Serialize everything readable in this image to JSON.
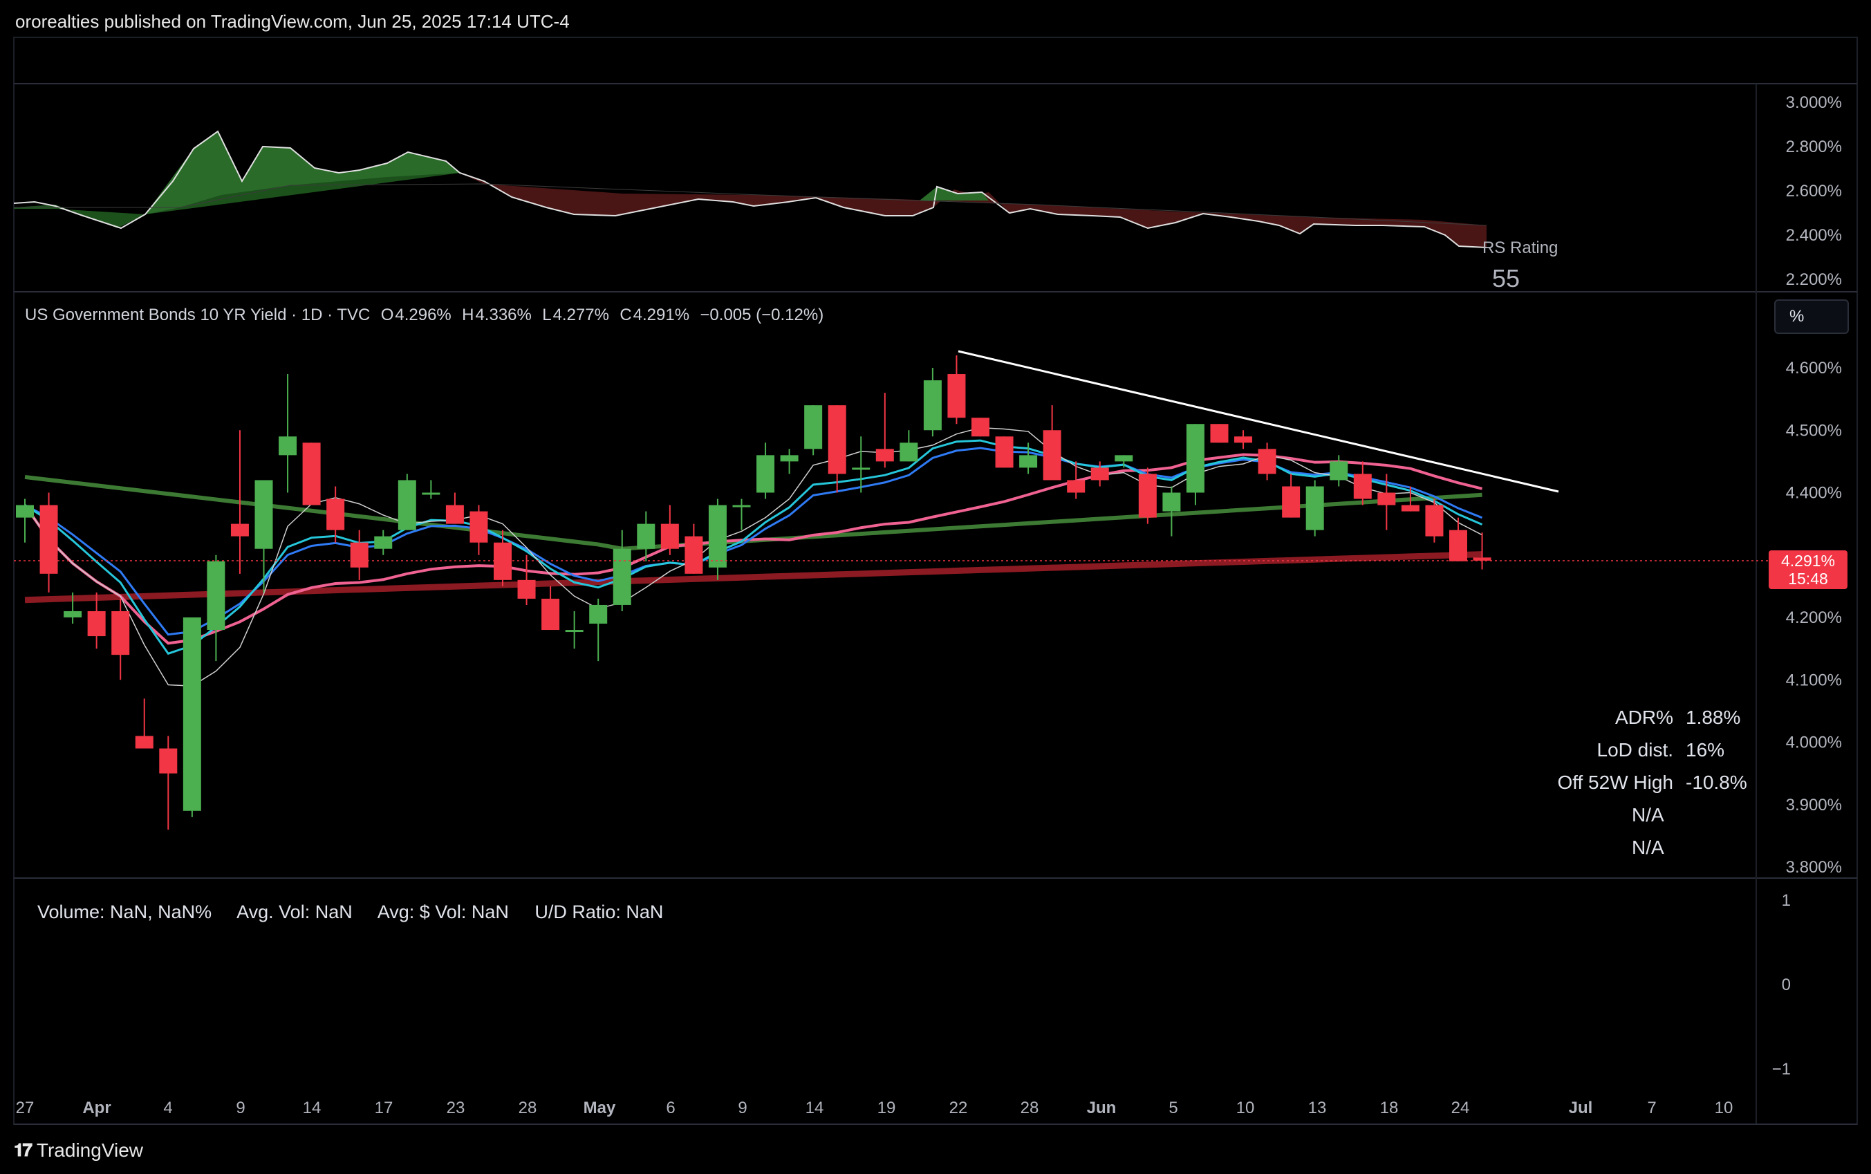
{
  "header": {
    "published": "ororealties published on TradingView.com, Jun 25, 2025 17:14 UTC-4"
  },
  "rs_panel": {
    "label": "RS Rating",
    "value": "55",
    "axis_labels": [
      "3.000%",
      "2.800%",
      "2.600%",
      "2.400%",
      "2.200%"
    ]
  },
  "legend": {
    "symbol": "US Government Bonds 10 YR Yield · 1D · TVC",
    "o_label": "O",
    "o_value": "4.296%",
    "h_label": "H",
    "h_value": "4.336%",
    "l_label": "L",
    "l_value": "4.277%",
    "c_label": "C",
    "c_value": "4.291%",
    "change": "−0.005 (−0.12%)"
  },
  "scale_button": "%",
  "price_tag": {
    "price": "4.291%",
    "countdown": "15:48"
  },
  "price_axis_labels": [
    "4.600%",
    "4.500%",
    "4.400%",
    "4.200%",
    "4.100%",
    "4.000%",
    "3.900%",
    "3.800%"
  ],
  "stats": [
    {
      "label": "ADR%",
      "value": "1.88%"
    },
    {
      "label": "LoD dist.",
      "value": "16%"
    },
    {
      "label": "Off 52W High",
      "value": "-10.8%"
    },
    {
      "label": "",
      "value": "N/A"
    },
    {
      "label": "",
      "value": "N/A"
    }
  ],
  "volume_legend": {
    "volume": "Volume: NaN, NaN%",
    "avg_vol": "Avg. Vol: NaN",
    "avg_dollar_vol": "Avg: $ Vol: NaN",
    "ud_ratio": "U/D Ratio: NaN"
  },
  "volume_axis_labels": [
    "1",
    "0",
    "−1"
  ],
  "time_axis_labels": [
    "27",
    "Apr",
    "4",
    "9",
    "14",
    "17",
    "23",
    "28",
    "May",
    "6",
    "9",
    "14",
    "19",
    "22",
    "28",
    "Jun",
    "5",
    "10",
    "13",
    "18",
    "24",
    "Jul",
    "7",
    "10"
  ],
  "footer": {
    "brand": "TradingView"
  },
  "colors": {
    "up": "#4caf50",
    "down": "#f23645",
    "ma_green": "#3d7a33",
    "ma_red": "#8b1a22",
    "ma_pink": "#f06292",
    "ma_blue": "#2f7bf5",
    "ma_cyan": "#26c6da",
    "ma_white": "#d0d0d0",
    "trendline": "#ffffff"
  },
  "chart_data": {
    "type": "candlestick",
    "candles": [
      {
        "o": 4.36,
        "h": 4.39,
        "l": 4.32,
        "c": 4.38
      },
      {
        "o": 4.38,
        "h": 4.4,
        "l": 4.24,
        "c": 4.27
      },
      {
        "o": 4.2,
        "h": 4.24,
        "l": 4.19,
        "c": 4.21
      },
      {
        "o": 4.21,
        "h": 4.24,
        "l": 4.15,
        "c": 4.17
      },
      {
        "o": 4.21,
        "h": 4.23,
        "l": 4.1,
        "c": 4.14
      },
      {
        "o": 4.01,
        "h": 4.07,
        "l": 3.99,
        "c": 3.99
      },
      {
        "o": 3.99,
        "h": 4.01,
        "l": 3.86,
        "c": 3.95
      },
      {
        "o": 3.89,
        "h": 4.2,
        "l": 3.88,
        "c": 4.2
      },
      {
        "o": 4.18,
        "h": 4.3,
        "l": 4.13,
        "c": 4.29
      },
      {
        "o": 4.35,
        "h": 4.5,
        "l": 4.27,
        "c": 4.33
      },
      {
        "o": 4.31,
        "h": 4.42,
        "l": 4.24,
        "c": 4.42
      },
      {
        "o": 4.46,
        "h": 4.59,
        "l": 4.4,
        "c": 4.49
      },
      {
        "o": 4.48,
        "h": 4.48,
        "l": 4.38,
        "c": 4.38
      },
      {
        "o": 4.39,
        "h": 4.41,
        "l": 4.32,
        "c": 4.34
      },
      {
        "o": 4.32,
        "h": 4.34,
        "l": 4.26,
        "c": 4.28
      },
      {
        "o": 4.31,
        "h": 4.34,
        "l": 4.3,
        "c": 4.33
      },
      {
        "o": 4.34,
        "h": 4.43,
        "l": 4.34,
        "c": 4.42
      },
      {
        "o": 4.4,
        "h": 4.42,
        "l": 4.39,
        "c": 4.4
      },
      {
        "o": 4.38,
        "h": 4.4,
        "l": 4.35,
        "c": 4.35
      },
      {
        "o": 4.37,
        "h": 4.38,
        "l": 4.3,
        "c": 4.32
      },
      {
        "o": 4.32,
        "h": 4.34,
        "l": 4.25,
        "c": 4.26
      },
      {
        "o": 4.26,
        "h": 4.3,
        "l": 4.22,
        "c": 4.23
      },
      {
        "o": 4.23,
        "h": 4.25,
        "l": 4.18,
        "c": 4.18
      },
      {
        "o": 4.18,
        "h": 4.21,
        "l": 4.15,
        "c": 4.18
      },
      {
        "o": 4.19,
        "h": 4.23,
        "l": 4.13,
        "c": 4.22
      },
      {
        "o": 4.22,
        "h": 4.34,
        "l": 4.21,
        "c": 4.31
      },
      {
        "o": 4.31,
        "h": 4.37,
        "l": 4.29,
        "c": 4.35
      },
      {
        "o": 4.35,
        "h": 4.38,
        "l": 4.3,
        "c": 4.31
      },
      {
        "o": 4.33,
        "h": 4.35,
        "l": 4.27,
        "c": 4.27
      },
      {
        "o": 4.28,
        "h": 4.39,
        "l": 4.26,
        "c": 4.38
      },
      {
        "o": 4.38,
        "h": 4.39,
        "l": 4.34,
        "c": 4.38
      },
      {
        "o": 4.4,
        "h": 4.48,
        "l": 4.39,
        "c": 4.46
      },
      {
        "o": 4.45,
        "h": 4.47,
        "l": 4.43,
        "c": 4.46
      },
      {
        "o": 4.47,
        "h": 4.54,
        "l": 4.46,
        "c": 4.54
      },
      {
        "o": 4.54,
        "h": 4.54,
        "l": 4.4,
        "c": 4.43
      },
      {
        "o": 4.44,
        "h": 4.49,
        "l": 4.4,
        "c": 4.44
      },
      {
        "o": 4.47,
        "h": 4.56,
        "l": 4.44,
        "c": 4.45
      },
      {
        "o": 4.45,
        "h": 4.5,
        "l": 4.45,
        "c": 4.48
      },
      {
        "o": 4.5,
        "h": 4.6,
        "l": 4.49,
        "c": 4.58
      },
      {
        "o": 4.59,
        "h": 4.62,
        "l": 4.51,
        "c": 4.52
      },
      {
        "o": 4.52,
        "h": 4.52,
        "l": 4.49,
        "c": 4.49
      },
      {
        "o": 4.49,
        "h": 4.49,
        "l": 4.44,
        "c": 4.44
      },
      {
        "o": 4.44,
        "h": 4.48,
        "l": 4.43,
        "c": 4.46
      },
      {
        "o": 4.5,
        "h": 4.54,
        "l": 4.42,
        "c": 4.42
      },
      {
        "o": 4.42,
        "h": 4.45,
        "l": 4.39,
        "c": 4.4
      },
      {
        "o": 4.44,
        "h": 4.45,
        "l": 4.41,
        "c": 4.42
      },
      {
        "o": 4.45,
        "h": 4.46,
        "l": 4.44,
        "c": 4.46
      },
      {
        "o": 4.43,
        "h": 4.44,
        "l": 4.35,
        "c": 4.36
      },
      {
        "o": 4.37,
        "h": 4.41,
        "l": 4.33,
        "c": 4.4
      },
      {
        "o": 4.4,
        "h": 4.51,
        "l": 4.38,
        "c": 4.51
      },
      {
        "o": 4.51,
        "h": 4.51,
        "l": 4.48,
        "c": 4.48
      },
      {
        "o": 4.49,
        "h": 4.5,
        "l": 4.47,
        "c": 4.48
      },
      {
        "o": 4.47,
        "h": 4.48,
        "l": 4.42,
        "c": 4.43
      },
      {
        "o": 4.41,
        "h": 4.43,
        "l": 4.36,
        "c": 4.36
      },
      {
        "o": 4.34,
        "h": 4.42,
        "l": 4.33,
        "c": 4.41
      },
      {
        "o": 4.42,
        "h": 4.46,
        "l": 4.41,
        "c": 4.45
      },
      {
        "o": 4.43,
        "h": 4.45,
        "l": 4.38,
        "c": 4.39
      },
      {
        "o": 4.4,
        "h": 4.43,
        "l": 4.34,
        "c": 4.38
      },
      {
        "o": 4.38,
        "h": 4.41,
        "l": 4.37,
        "c": 4.37
      },
      {
        "o": 4.38,
        "h": 4.39,
        "l": 4.32,
        "c": 4.33
      },
      {
        "o": 4.34,
        "h": 4.36,
        "l": 4.29,
        "c": 4.29
      },
      {
        "o": 4.296,
        "h": 4.336,
        "l": 4.277,
        "c": 4.291
      }
    ]
  }
}
